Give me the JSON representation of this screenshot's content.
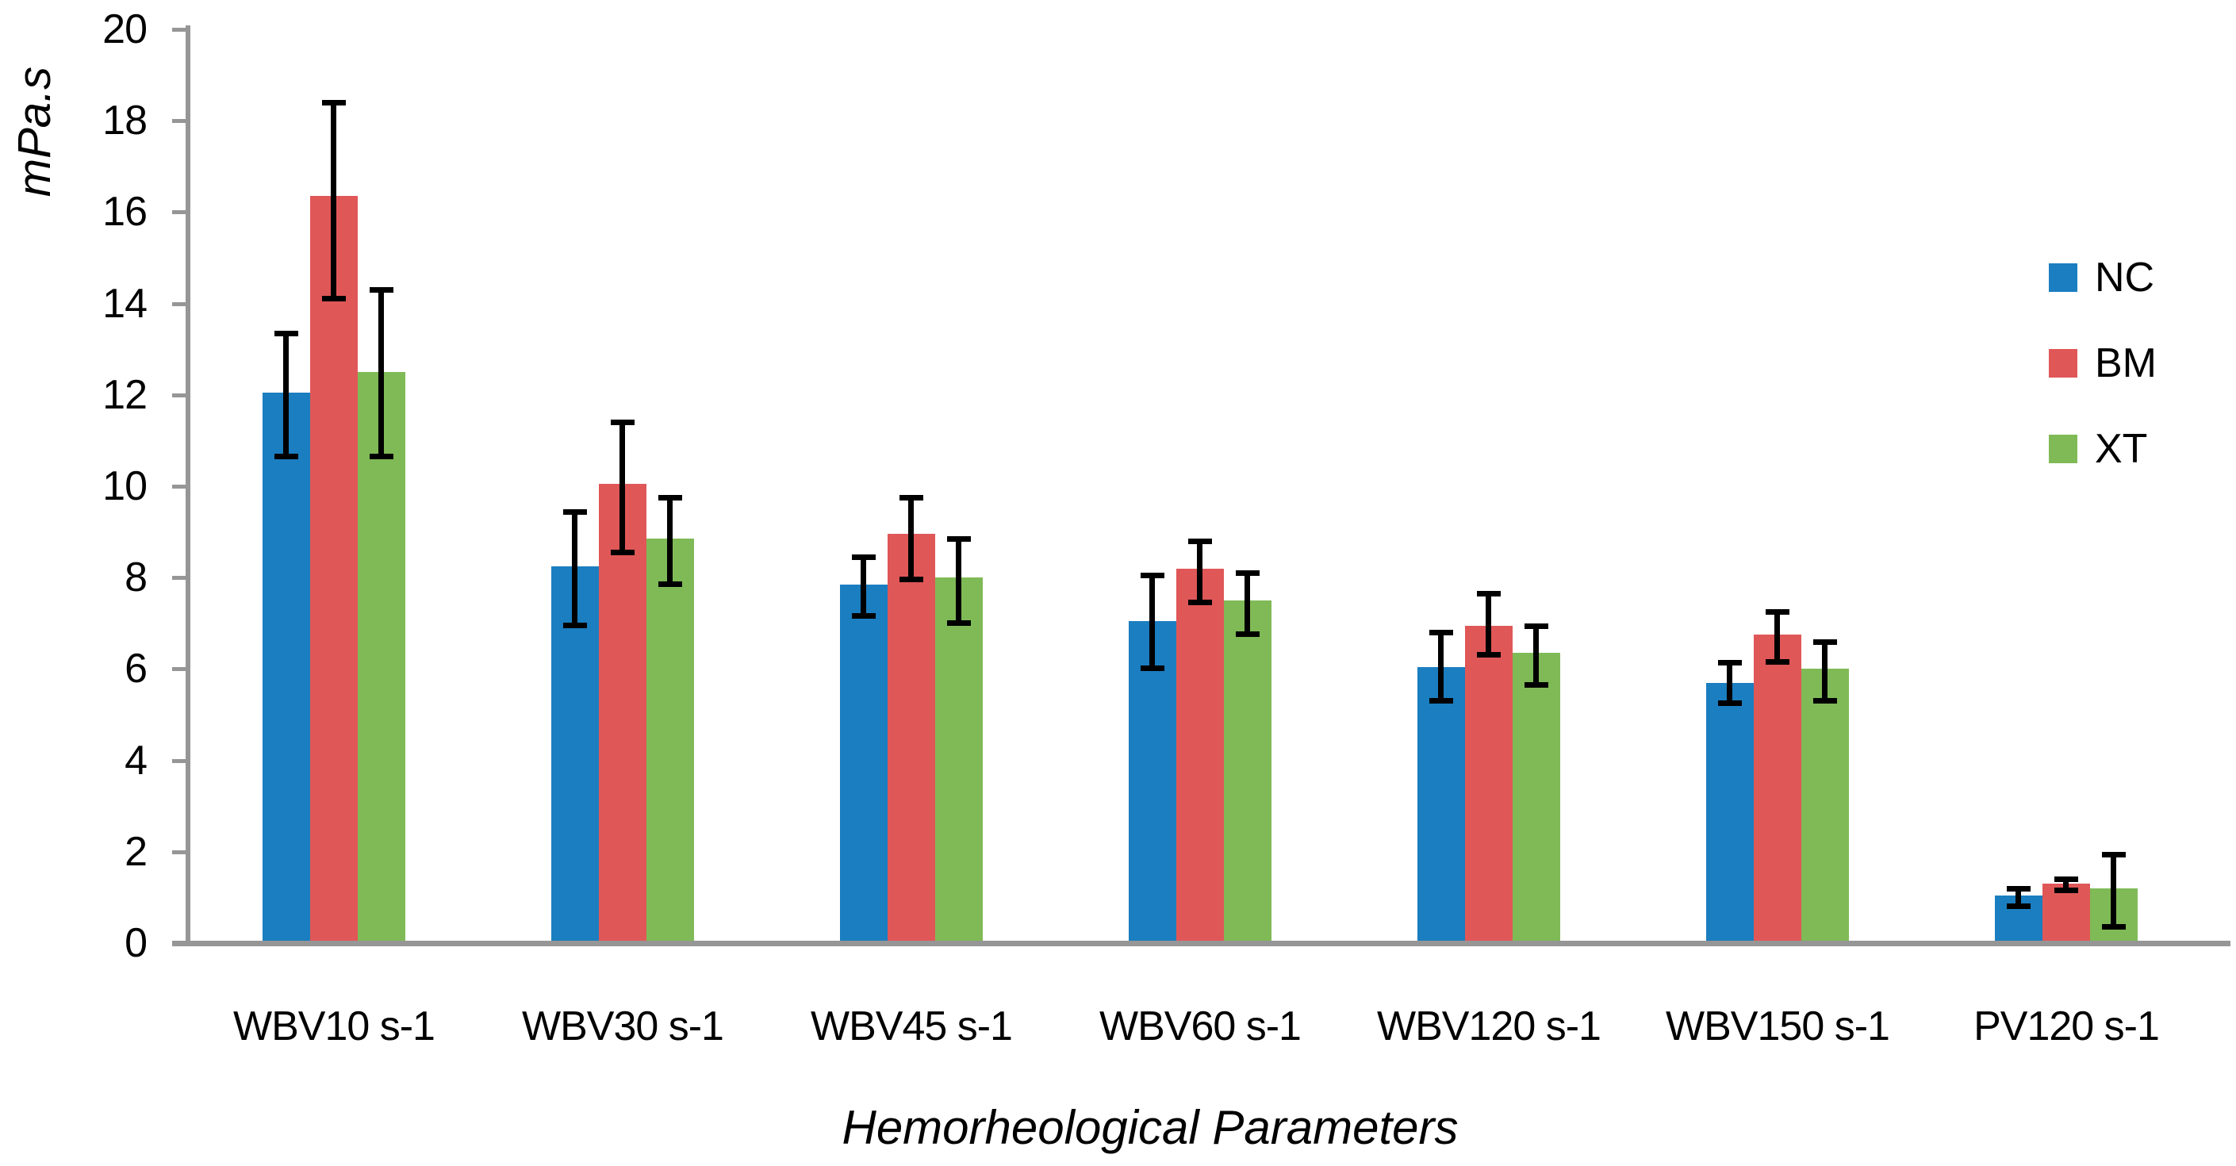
{
  "chart_data": {
    "type": "bar",
    "title": "",
    "xlabel": "Hemorheological Parameters",
    "ylabel": "mPa.s",
    "ylim": [
      0,
      20
    ],
    "yticks": [
      0,
      2,
      4,
      6,
      8,
      10,
      12,
      14,
      16,
      18,
      20
    ],
    "grid": false,
    "legend_position": "right",
    "categories": [
      "WBV10 s-1",
      "WBV30 s-1",
      "WBV45 s-1",
      "WBV60 s-1",
      "WBV120 s-1",
      "WBV150 s-1",
      "PV120 s-1"
    ],
    "series": [
      {
        "name": "NC",
        "color": "#1B7EC0",
        "values": [
          12.05,
          8.25,
          7.85,
          7.05,
          6.05,
          5.7,
          1.05
        ],
        "error_low": [
          10.65,
          6.95,
          7.15,
          6.0,
          5.3,
          5.25,
          0.8
        ],
        "error_high": [
          13.35,
          9.45,
          8.45,
          8.05,
          6.8,
          6.15,
          1.2
        ]
      },
      {
        "name": "BM",
        "color": "#E05758",
        "values": [
          16.35,
          10.05,
          8.95,
          8.2,
          6.95,
          6.75,
          1.3
        ],
        "error_low": [
          14.1,
          8.55,
          7.95,
          7.45,
          6.3,
          6.15,
          1.15
        ],
        "error_high": [
          18.4,
          11.4,
          9.75,
          8.8,
          7.65,
          7.25,
          1.4
        ]
      },
      {
        "name": "XT",
        "color": "#7FBA57",
        "values": [
          12.5,
          8.85,
          8.0,
          7.5,
          6.35,
          6.0,
          1.2
        ],
        "error_low": [
          10.65,
          7.85,
          7.0,
          6.75,
          5.65,
          5.3,
          0.35
        ],
        "error_high": [
          14.3,
          9.75,
          8.85,
          8.1,
          6.95,
          6.6,
          1.95
        ]
      }
    ]
  },
  "colors": {
    "axis": "#969696",
    "error_bar": "#000000",
    "background": "#FFFFFF",
    "text": "#000000"
  }
}
